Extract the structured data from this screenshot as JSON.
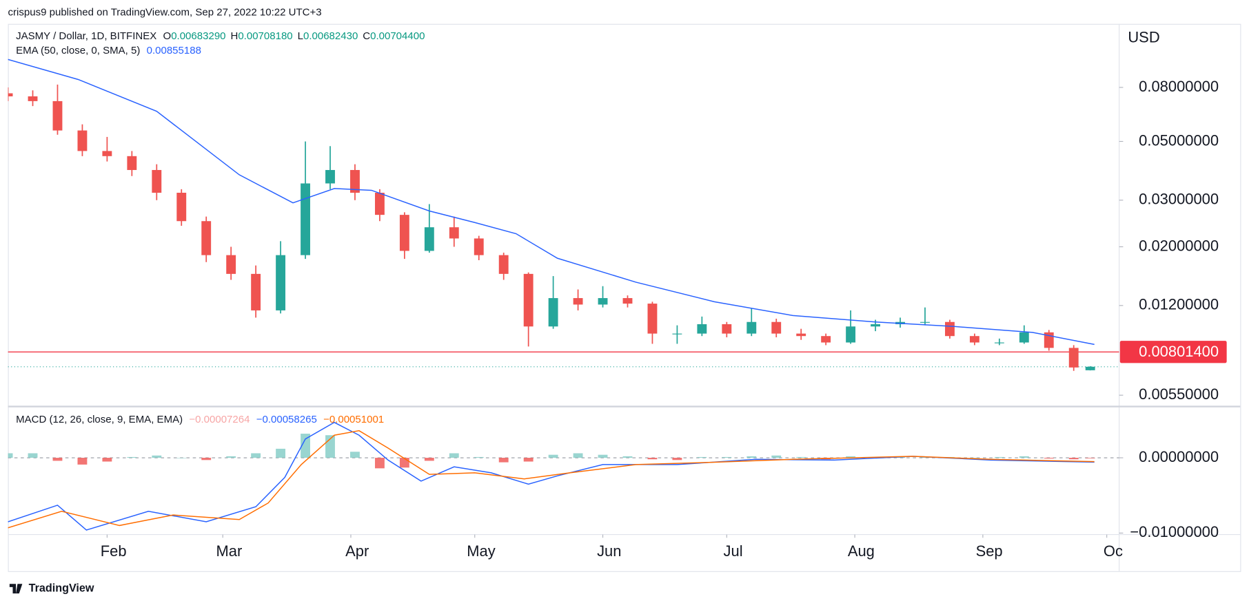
{
  "header": {
    "published": "crispus9 published on TradingView.com, Sep 27, 2022 10:22 UTC+3",
    "footer": "TradingView"
  },
  "chart_data": [
    {
      "type": "candlestick",
      "title": "JASMY / Dollar, 1D, BITFINEX",
      "y_unit": "USD",
      "x": [
        0,
        6,
        12,
        18,
        24,
        30,
        36,
        42,
        48,
        54,
        60,
        66,
        72,
        78,
        84,
        90,
        96,
        102,
        108,
        114,
        120,
        126,
        132,
        138,
        144,
        150,
        156,
        162,
        168,
        174,
        180,
        186,
        192,
        198,
        204,
        210,
        216,
        222,
        228,
        234,
        240,
        246,
        252,
        258,
        262
      ],
      "open": [
        0.076,
        0.074,
        0.071,
        0.055,
        0.046,
        0.044,
        0.039,
        0.032,
        0.025,
        0.0186,
        0.0158,
        0.0115,
        0.0186,
        0.0347,
        0.039,
        0.032,
        0.0264,
        0.0193,
        0.0237,
        0.0215,
        0.0186,
        0.0158,
        0.01,
        0.0128,
        0.0121,
        0.0128,
        0.0122,
        0.0094,
        0.0094,
        0.0102,
        0.0094,
        0.0104,
        0.0094,
        0.0092,
        0.0087,
        0.01,
        0.0102,
        0.0104,
        0.0104,
        0.0092,
        0.0087,
        0.0087,
        0.0095,
        0.0083,
        0.0068329
      ],
      "high": [
        0.08,
        0.078,
        0.082,
        0.058,
        0.052,
        0.046,
        0.041,
        0.033,
        0.026,
        0.02,
        0.017,
        0.021,
        0.05,
        0.048,
        0.041,
        0.033,
        0.027,
        0.029,
        0.026,
        0.022,
        0.019,
        0.016,
        0.0155,
        0.0138,
        0.0142,
        0.0131,
        0.0124,
        0.0101,
        0.0109,
        0.0104,
        0.0117,
        0.0107,
        0.0098,
        0.0094,
        0.0115,
        0.0106,
        0.0108,
        0.0118,
        0.0106,
        0.0094,
        0.009,
        0.0101,
        0.0097,
        0.0085,
        0.0070818
      ],
      "low": [
        0.071,
        0.068,
        0.053,
        0.044,
        0.042,
        0.037,
        0.03,
        0.024,
        0.0175,
        0.015,
        0.0108,
        0.0112,
        0.018,
        0.033,
        0.03,
        0.025,
        0.018,
        0.019,
        0.02,
        0.0178,
        0.015,
        0.0084,
        0.0098,
        0.0115,
        0.0118,
        0.0118,
        0.0086,
        0.0086,
        0.0092,
        0.0091,
        0.0092,
        0.0091,
        0.0089,
        0.0085,
        0.0086,
        0.0096,
        0.0099,
        0.0101,
        0.009,
        0.0085,
        0.0085,
        0.0086,
        0.0081,
        0.0068,
        0.0068243
      ],
      "close": [
        0.074,
        0.071,
        0.055,
        0.046,
        0.044,
        0.039,
        0.032,
        0.025,
        0.0186,
        0.0158,
        0.0115,
        0.0186,
        0.0347,
        0.039,
        0.032,
        0.0264,
        0.0193,
        0.0237,
        0.0215,
        0.0186,
        0.0158,
        0.01,
        0.0128,
        0.0121,
        0.0128,
        0.0122,
        0.0094,
        0.0094,
        0.0102,
        0.0094,
        0.0104,
        0.0094,
        0.0092,
        0.0087,
        0.01,
        0.0102,
        0.0104,
        0.0104,
        0.0092,
        0.0087,
        0.0087,
        0.0095,
        0.0083,
        0.007,
        0.007044
      ],
      "up_color": "#26a69a",
      "down_color": "#ef5350",
      "log_scale": true,
      "ylim": [
        0.00502,
        0.139
      ],
      "yticks": [
        {
          "value": 0.08,
          "label": "0.08000000"
        },
        {
          "value": 0.05,
          "label": "0.05000000"
        },
        {
          "value": 0.03,
          "label": "0.03000000"
        },
        {
          "value": 0.02,
          "label": "0.02000000"
        },
        {
          "value": 0.012,
          "label": "0.01200000"
        },
        {
          "value": 0.0055,
          "label": "0.00550000"
        }
      ],
      "xlim": [
        0,
        269
      ],
      "xticks": [
        {
          "value": 24,
          "label": "Feb"
        },
        {
          "value": 52,
          "label": "Mar"
        },
        {
          "value": 83,
          "label": "Apr"
        },
        {
          "value": 113,
          "label": "May"
        },
        {
          "value": 144,
          "label": "Jun"
        },
        {
          "value": 174,
          "label": "Jul"
        },
        {
          "value": 205,
          "label": "Aug"
        },
        {
          "value": 236,
          "label": "Sep"
        },
        {
          "value": 266,
          "label": "Oc"
        }
      ],
      "ohlc_legend": [
        {
          "name": "O",
          "value": 0.0068329,
          "label": "0.00683290"
        },
        {
          "name": "H",
          "value": 0.0070818,
          "label": "0.00708180"
        },
        {
          "name": "L",
          "value": 0.0068243,
          "label": "0.00682430"
        },
        {
          "name": "C",
          "value": 0.007044,
          "label": "0.00704400"
        }
      ],
      "series": [
        {
          "name": "EMA (50, close, 0, SMA, 5)",
          "color": "#2962ff",
          "x": [
            0,
            17,
            36,
            56,
            69,
            79,
            88,
            102,
            113,
            123,
            133,
            152,
            171,
            190,
            210,
            229,
            248,
            263
          ],
          "values": [
            0.102,
            0.0857,
            0.065,
            0.0374,
            0.0293,
            0.0332,
            0.0327,
            0.0273,
            0.0247,
            0.0224,
            0.0181,
            0.0147,
            0.0124,
            0.011,
            0.0104,
            0.01,
            0.0095,
            0.00855188
          ],
          "last": {
            "value": 0.00855188,
            "label": "0.00855188"
          }
        }
      ],
      "hline": {
        "value": 0.008014,
        "label": "0.00801400",
        "color": "#f23645"
      }
    },
    {
      "type": "macd",
      "title": "MACD (12, 26, close, 9, EMA, EMA)",
      "xlim": [
        0,
        269
      ],
      "ylim": [
        -0.0102,
        0.0066
      ],
      "yticks": [
        {
          "value": 0,
          "label": "0.00000000"
        },
        {
          "value": -0.01,
          "label": "−0.01000000"
        }
      ],
      "histogram": {
        "x": [
          0,
          6,
          12,
          18,
          24,
          30,
          36,
          42,
          48,
          54,
          60,
          66,
          72,
          78,
          84,
          90,
          96,
          102,
          108,
          114,
          120,
          126,
          132,
          138,
          144,
          150,
          156,
          162,
          168,
          174,
          180,
          186,
          192,
          198,
          204,
          210,
          216,
          222,
          228,
          234,
          240,
          246,
          252,
          258,
          262
        ],
        "values": [
          0.0006,
          0.0006,
          -0.0004,
          -0.0009,
          -0.0005,
          0.0001,
          0.0003,
          0,
          -0.0003,
          0.0002,
          0.0006,
          0.0012,
          0.0032,
          0.003,
          0.0008,
          -0.0014,
          -0.0013,
          -0.0004,
          0.0006,
          0.0001,
          -0.0006,
          -0.0005,
          0.0004,
          0.0006,
          0.0004,
          0.0002,
          -0.0002,
          -0.0003,
          0.0001,
          0.0001,
          0.0002,
          0.0003,
          0.0001,
          -0.0002,
          0.0002,
          0.0001,
          0.0001,
          0.0001,
          0.0001,
          0,
          0.0001,
          0.0002,
          -0.0001,
          -0.0002,
          -7.264e-05
        ],
        "pos_color": "#80cbc4",
        "neg_color": "#ef5350",
        "last_color": "#f7a5a5",
        "last": {
          "value": -7.264e-05,
          "label": "−0.00007264"
        }
      },
      "series": [
        {
          "color": "#2962ff",
          "x": [
            0,
            12,
            19,
            34,
            48,
            60,
            67,
            72,
            79,
            85,
            92,
            100,
            108,
            117,
            126,
            133,
            144,
            162,
            181,
            200,
            219,
            238,
            263
          ],
          "values": [
            -0.0085,
            -0.0063,
            -0.0096,
            -0.0071,
            -0.0085,
            -0.0065,
            -0.0026,
            0.0025,
            0.0047,
            0.003,
            -0.0003,
            -0.0031,
            -0.0012,
            -0.002,
            -0.0035,
            -0.0024,
            -0.0009,
            -0.0009,
            -0.0002,
            -0.0003,
            0.0002,
            -0.0003,
            -0.00058265
          ],
          "last": {
            "value": -0.00058265,
            "label": "−0.00058265"
          }
        },
        {
          "color": "#ff6d00",
          "x": [
            0,
            13,
            27,
            40,
            56,
            63,
            71,
            79,
            85,
            92,
            102,
            113,
            125,
            136,
            152,
            171,
            190,
            219,
            238,
            263
          ],
          "values": [
            -0.0093,
            -0.0071,
            -0.009,
            -0.0076,
            -0.0082,
            -0.006,
            -0.0009,
            0.003,
            0.0036,
            0.0013,
            -0.0022,
            -0.002,
            -0.0028,
            -0.002,
            -0.0009,
            -0.0006,
            -0.0002,
            0.0002,
            -0.0002,
            -0.00051001
          ],
          "last": {
            "value": -0.00051001,
            "label": "−0.00051001"
          }
        }
      ]
    }
  ]
}
